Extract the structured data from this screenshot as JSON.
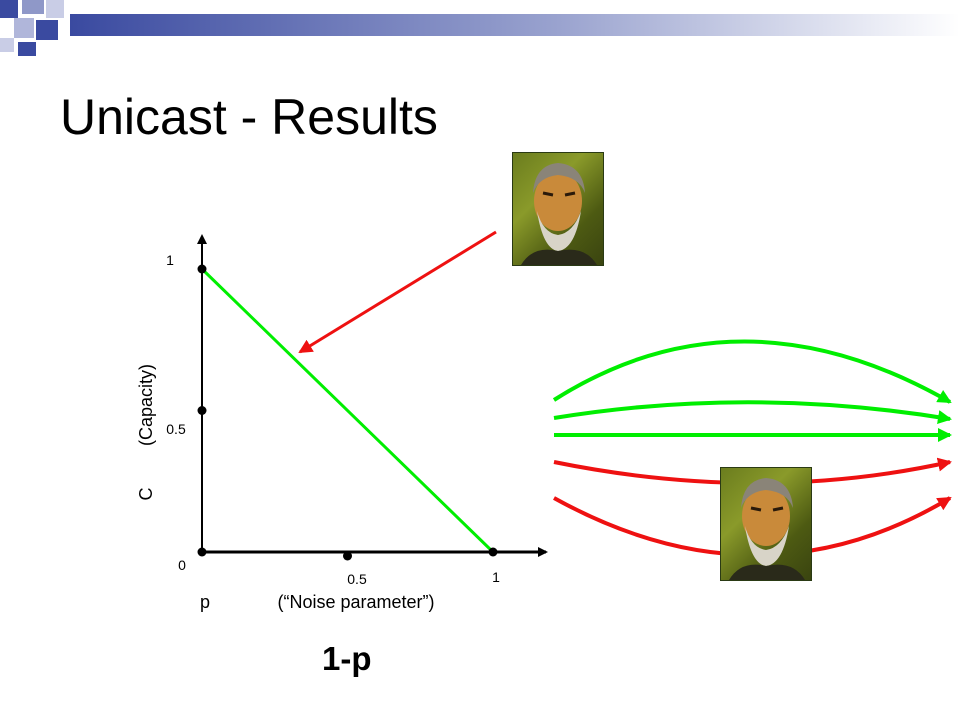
{
  "title": "Unicast - Results",
  "formula": "1-p",
  "colors": {
    "green": "#00ee00",
    "red": "#ee1111",
    "axis": "#000000"
  },
  "icons": {
    "portrait": "bearded-man-portrait-icon"
  },
  "chart_data": {
    "type": "line",
    "xlabel": "p",
    "xlabel_note": "(“Noise parameter”)",
    "ylabel": "C",
    "ylabel_note": "(Capacity)",
    "xlim": [
      0,
      1.18
    ],
    "ylim": [
      0,
      1.1
    ],
    "x_ticks": [
      {
        "value": 0,
        "label": "0"
      },
      {
        "value": 0.5,
        "label": "0.5"
      },
      {
        "value": 1,
        "label": "1"
      }
    ],
    "y_ticks": [
      {
        "value": 0.5,
        "label": "0.5"
      },
      {
        "value": 1,
        "label": "1"
      }
    ],
    "series": [
      {
        "color": "#00ee00",
        "x": [
          0,
          1
        ],
        "y": [
          1,
          0
        ]
      }
    ]
  }
}
